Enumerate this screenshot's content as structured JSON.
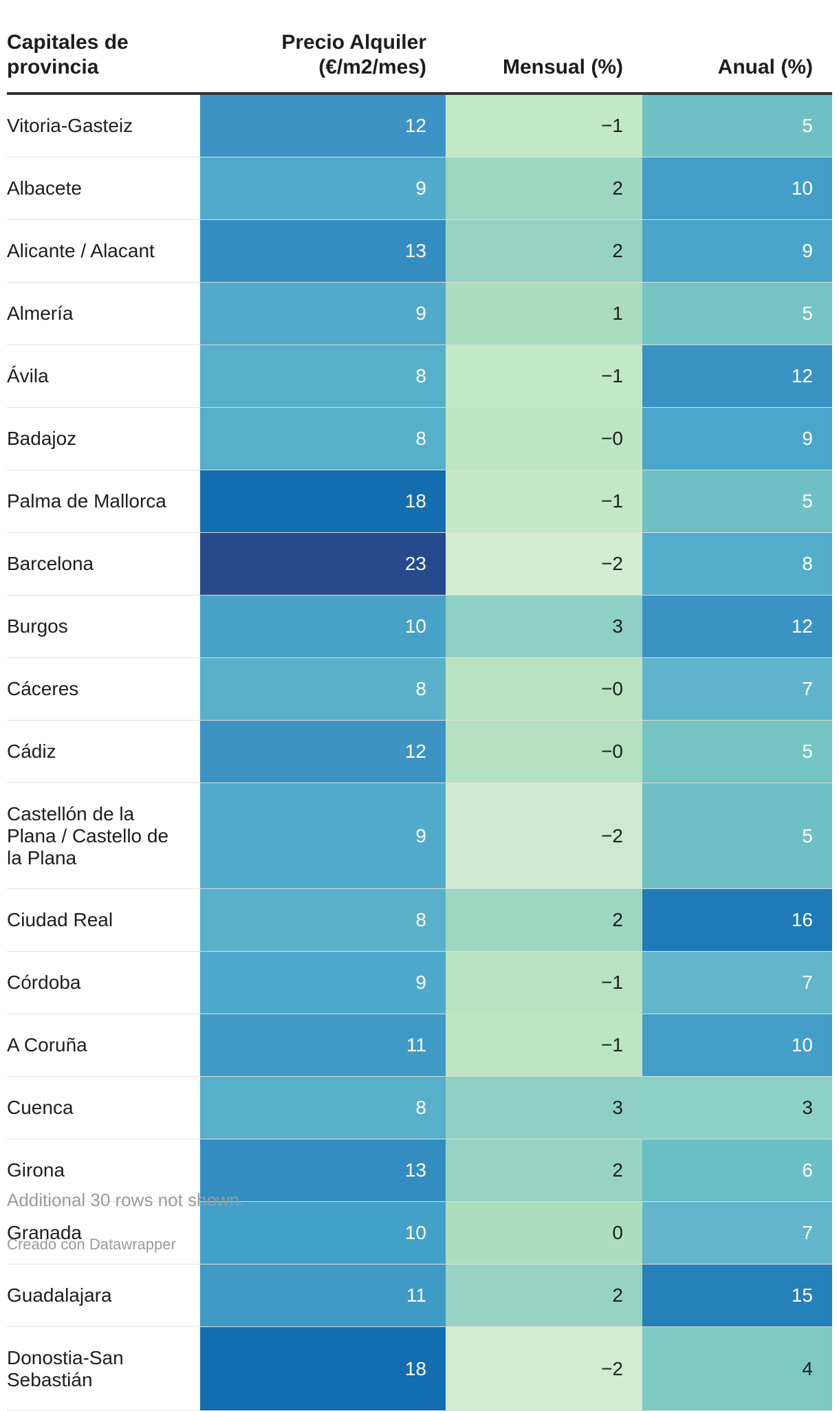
{
  "headers": {
    "city": "Capitales de provincia",
    "price": "Precio Alquiler (€/m2/mes)",
    "monthly": "Mensual (%)",
    "annual": "Anual (%)"
  },
  "footer": {
    "note": "Additional 30 rows not shown.",
    "credit": "Creado con Datawrapper"
  },
  "colors": {
    "header_rule": "#333333",
    "price_scale": [
      "#5ab0c9",
      "#4ea6cc",
      "#3f97c6",
      "#1c6aa9",
      "#264a8b"
    ],
    "monthly_scale": [
      "#cfeacd",
      "#c2e8c6",
      "#b5e1c0",
      "#9ed6c2",
      "#8ed0c3"
    ],
    "annual_scale": [
      "#87cdc1",
      "#74c3c4",
      "#5fb3cd",
      "#3f97c6",
      "#1f7ab7"
    ]
  },
  "chart_data": {
    "type": "table",
    "columns": [
      "Capitales de provincia",
      "Precio Alquiler (€/m2/mes)",
      "Mensual (%)",
      "Anual (%)"
    ],
    "rows": [
      {
        "city": "Vitoria-Gasteiz",
        "price": "12",
        "monthly": "−1",
        "annual": "5",
        "c": [
          "#3c93c4",
          "#c2e8c6",
          "#6fc0c4"
        ]
      },
      {
        "city": "Albacete",
        "price": "9",
        "monthly": "2",
        "annual": "10",
        "c": [
          "#53abcb",
          "#9ed6c2",
          "#439ec8"
        ]
      },
      {
        "city": "Alicante / Alacant",
        "price": "13",
        "monthly": "2",
        "annual": "9",
        "c": [
          "#348dc1",
          "#96d3c2",
          "#4aa5cb"
        ]
      },
      {
        "city": "Almería",
        "price": "9",
        "monthly": "1",
        "annual": "5",
        "c": [
          "#52aacb",
          "#aadcc0",
          "#74c4c4"
        ]
      },
      {
        "city": "Ávila",
        "price": "8",
        "monthly": "−1",
        "annual": "12",
        "c": [
          "#57afca",
          "#c2e8c6",
          "#3b92c4"
        ]
      },
      {
        "city": "Badajoz",
        "price": "8",
        "monthly": "−0",
        "annual": "9",
        "c": [
          "#57afca",
          "#bde5c2",
          "#4ba6cb"
        ]
      },
      {
        "city": "Palma de Mallorca",
        "price": "18",
        "monthly": "−1",
        "annual": "5",
        "c": [
          "#136daf",
          "#c4e8c6",
          "#6fc0c4"
        ]
      },
      {
        "city": "Barcelona",
        "price": "23",
        "monthly": "−2",
        "annual": "8",
        "c": [
          "#264a8b",
          "#d1ecd0",
          "#53adcb"
        ]
      },
      {
        "city": "Burgos",
        "price": "10",
        "monthly": "3",
        "annual": "12",
        "c": [
          "#48a2c8",
          "#8ed0c3",
          "#3b92c4"
        ]
      },
      {
        "city": "Cáceres",
        "price": "8",
        "monthly": "−0",
        "annual": "7",
        "c": [
          "#5ab0c9",
          "#b9e3c0",
          "#5fb4cb"
        ]
      },
      {
        "city": "Cádiz",
        "price": "12",
        "monthly": "−0",
        "annual": "5",
        "c": [
          "#3c93c4",
          "#b5e1c0",
          "#74c4c4"
        ]
      },
      {
        "city": "Castellón de la Plana / Castello de la Plana",
        "price": "9",
        "monthly": "−2",
        "annual": "5",
        "c": [
          "#52aacb",
          "#cdead0",
          "#6fc0c4"
        ]
      },
      {
        "city": "Ciudad Real",
        "price": "8",
        "monthly": "2",
        "annual": "16",
        "c": [
          "#5ab0c9",
          "#9ed6c2",
          "#1f7ab7"
        ]
      },
      {
        "city": "Córdoba",
        "price": "9",
        "monthly": "−1",
        "annual": "7",
        "c": [
          "#4ea9cc",
          "#b9e3c0",
          "#62b5cb"
        ]
      },
      {
        "city": "A Coruña",
        "price": "11",
        "monthly": "−1",
        "annual": "10",
        "c": [
          "#3f9ac6",
          "#bde5c2",
          "#439ec8"
        ]
      },
      {
        "city": "Cuenca",
        "price": "8",
        "monthly": "3",
        "annual": "3",
        "c": [
          "#57afca",
          "#8ed0c3",
          "#8cd1c3"
        ]
      },
      {
        "city": "Girona",
        "price": "13",
        "monthly": "2",
        "annual": "6",
        "c": [
          "#348dc1",
          "#96d3c2",
          "#6bbfc6"
        ]
      },
      {
        "city": "Granada",
        "price": "10",
        "monthly": "0",
        "annual": "7",
        "c": [
          "#43a0c8",
          "#aedec0",
          "#62b5cb"
        ]
      },
      {
        "city": "Guadalajara",
        "price": "11",
        "monthly": "2",
        "annual": "15",
        "c": [
          "#3f9ac6",
          "#96d3c2",
          "#2680b9"
        ]
      },
      {
        "city": "Donostia-San Sebastián",
        "price": "18",
        "monthly": "−2",
        "annual": "4",
        "c": [
          "#136daf",
          "#d1ecd0",
          "#7dc9c3"
        ]
      }
    ]
  }
}
